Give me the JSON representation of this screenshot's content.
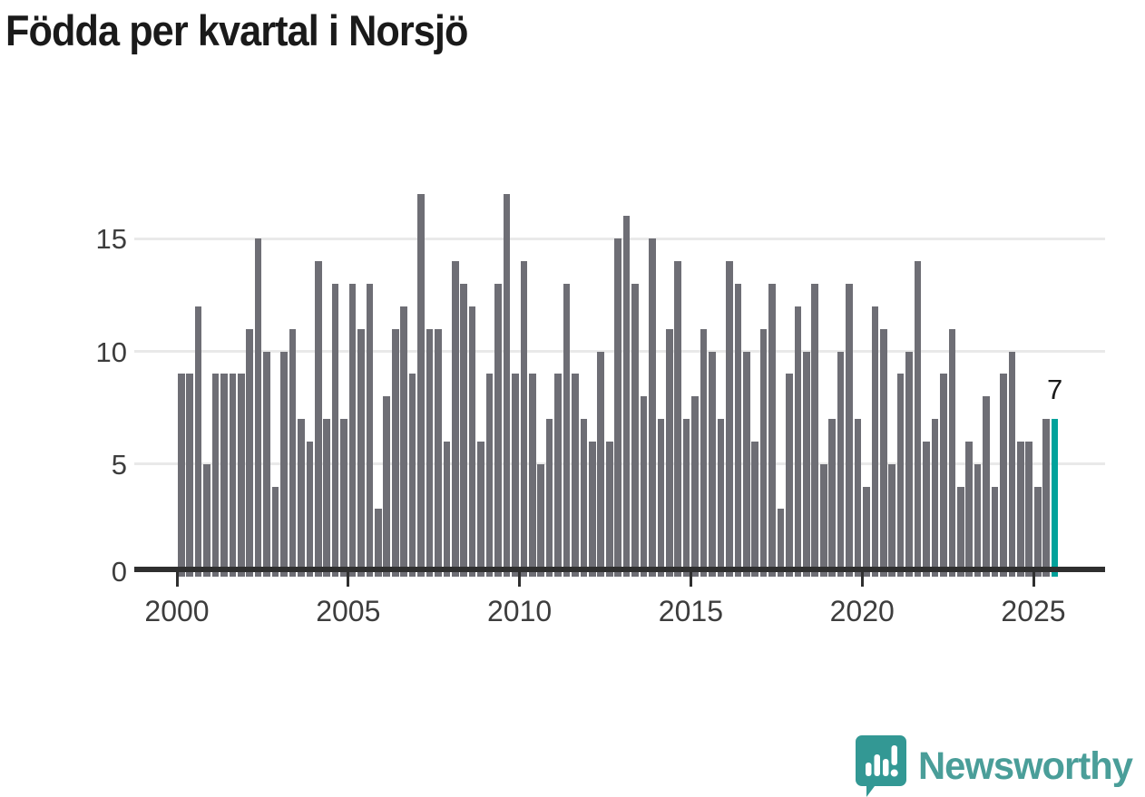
{
  "title": "Födda per kvartal i Norsjö",
  "annotation": {
    "last_value_label": "7"
  },
  "footer": {
    "brand": "Newsworthy"
  },
  "colors": {
    "bar": "#6e6e75",
    "highlight": "#00a29b",
    "title_text": "#1a1a1a",
    "axis_text": "#3d3d3d",
    "gridline": "#e9e9e9",
    "axis_line": "#2f2f2f",
    "logo_bubble": "#339894",
    "logo_text": "#4a9e99"
  },
  "chart_data": {
    "type": "bar",
    "title": "Födda per kvartal i Norsjö",
    "frequency": "quarterly",
    "x_start": "2000-Q1",
    "x_end": "2025-Q3",
    "x_tick_labels": [
      "2000",
      "2005",
      "2010",
      "2015",
      "2020",
      "2025"
    ],
    "y_tick_labels": [
      "0",
      "5",
      "10",
      "15"
    ],
    "y_tick_values": [
      0,
      5,
      10,
      15
    ],
    "ylim": [
      0,
      17.5
    ],
    "grid": "horizontal",
    "xlabel": "",
    "ylabel": "",
    "legend": "none",
    "values": [
      9,
      9,
      12,
      5,
      9,
      9,
      9,
      9,
      11,
      15,
      10,
      4,
      10,
      11,
      7,
      6,
      14,
      7,
      13,
      7,
      13,
      11,
      13,
      3,
      8,
      11,
      12,
      9,
      17,
      11,
      11,
      6,
      14,
      13,
      12,
      6,
      9,
      13,
      17,
      9,
      14,
      9,
      5,
      7,
      9,
      13,
      9,
      7,
      6,
      10,
      6,
      15,
      16,
      13,
      8,
      15,
      7,
      11,
      14,
      7,
      8,
      11,
      10,
      7,
      14,
      13,
      10,
      6,
      11,
      13,
      3,
      9,
      12,
      10,
      13,
      5,
      7,
      10,
      13,
      7,
      4,
      12,
      11,
      5,
      9,
      10,
      14,
      6,
      7,
      9,
      11,
      4,
      6,
      5,
      8,
      4,
      9,
      10,
      6,
      6,
      4,
      7,
      7
    ],
    "highlight_last_bar": true,
    "last_bar_label": "7"
  }
}
